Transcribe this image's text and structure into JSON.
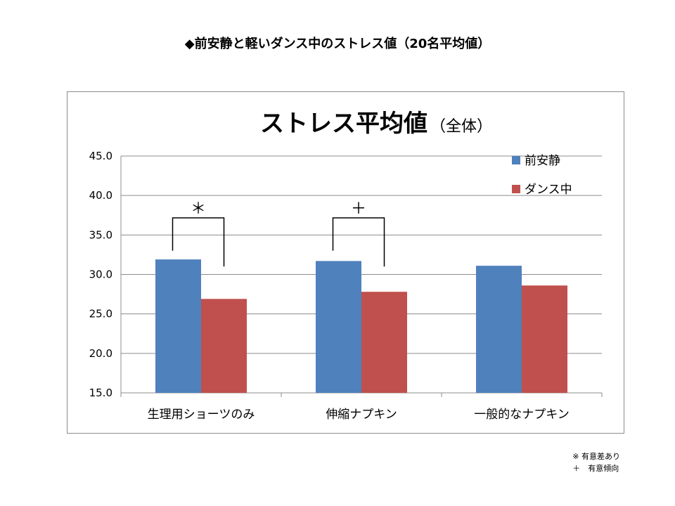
{
  "slide_title": "◆前安静と軽いダンス中のストレス値（20名平均値）",
  "chart_data": {
    "type": "bar",
    "title": "ストレス平均値",
    "subtitle": "（全体）",
    "categories": [
      "生理用ショーツのみ",
      "伸縮ナプキン",
      "一般的なナプキン"
    ],
    "series": [
      {
        "name": "前安静",
        "values": [
          31.9,
          31.7,
          31.1
        ],
        "color": "#4f81bd"
      },
      {
        "name": "ダンス中",
        "values": [
          26.9,
          27.8,
          28.6
        ],
        "color": "#c0504d"
      }
    ],
    "ylim": [
      15.0,
      45.0
    ],
    "yticks": [
      "15.0",
      "20.0",
      "25.0",
      "30.0",
      "35.0",
      "40.0",
      "45.0"
    ],
    "grid": true,
    "legend_position": "top-right",
    "significance": [
      {
        "category_index": 0,
        "mark": "＊"
      },
      {
        "category_index": 1,
        "mark": "＋"
      }
    ]
  },
  "footnotes": [
    "※ 有意差あり",
    "＋　有意傾向"
  ]
}
